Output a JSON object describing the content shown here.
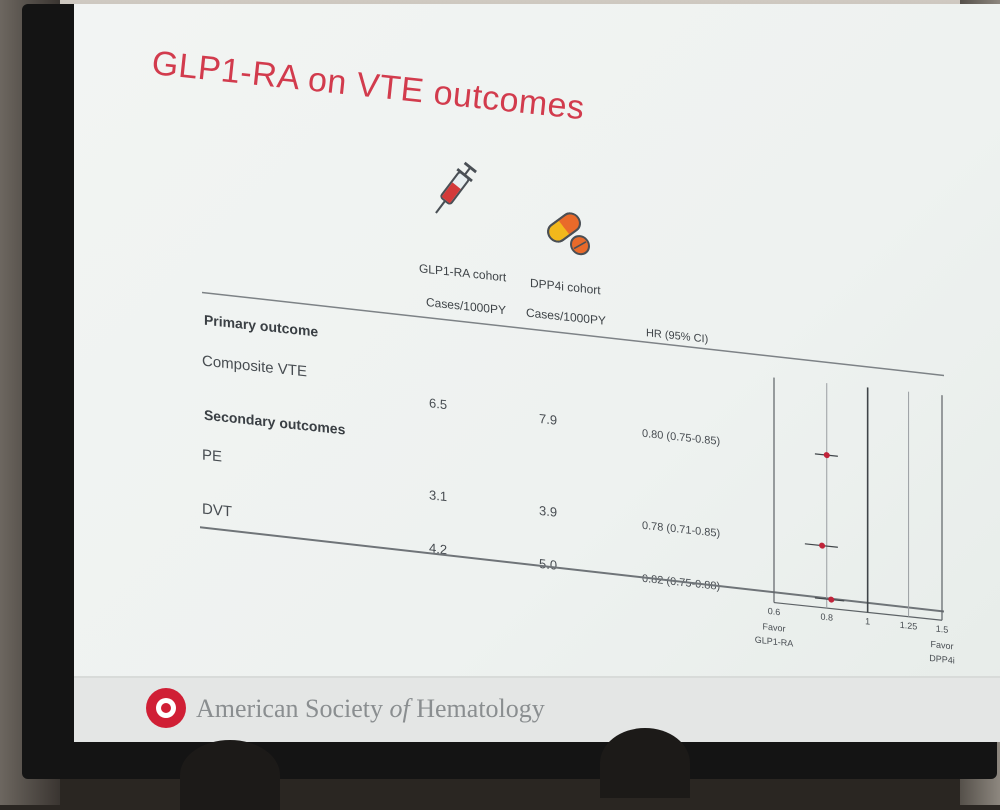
{
  "slide": {
    "title": "GLP1-RA on VTE outcomes",
    "footer_org_a": "American Society ",
    "footer_org_b": "of",
    "footer_org_c": " Hematology"
  },
  "icons": {
    "glp1": "syringe-icon",
    "dpp4": "pills-icon"
  },
  "colors": {
    "title": "#d23b4d",
    "marker": "#c0243a",
    "syringe": "#d33a3a",
    "pill_yellow": "#f2b81c",
    "pill_orange": "#e96a2a"
  },
  "chart_data": {
    "type": "table",
    "columns": {
      "glp1": "GLP1-RA cohort",
      "dpp4": "DPP4i cohort",
      "glp1_unit": "Cases/1000PY",
      "dpp4_unit": "Cases/1000PY",
      "hr": "HR (95% CI)"
    },
    "sections": [
      {
        "label": "Primary outcome",
        "rows": [
          {
            "outcome": "Composite VTE",
            "glp1": "6.5",
            "dpp4": "7.9",
            "hr_text": "0.80 (0.75-0.85)",
            "hr": 0.8,
            "ci": [
              0.75,
              0.85
            ]
          }
        ]
      },
      {
        "label": "Secondary outcomes",
        "rows": [
          {
            "outcome": "PE",
            "glp1": "3.1",
            "dpp4": "3.9",
            "hr_text": "0.78 (0.71-0.85)",
            "hr": 0.78,
            "ci": [
              0.71,
              0.85
            ]
          },
          {
            "outcome": "DVT",
            "glp1": "4.2",
            "dpp4": "5.0",
            "hr_text": "0.82 (0.75-0.88)",
            "hr": 0.82,
            "ci": [
              0.75,
              0.88
            ]
          }
        ]
      }
    ],
    "forest_axis": {
      "scale": "log",
      "ticks": [
        "0.6",
        "0.8",
        "1",
        "1.25",
        "1.5"
      ],
      "tick_values": [
        0.6,
        0.8,
        1,
        1.25,
        1.5
      ],
      "ref_line": 1,
      "favor_left": [
        "Favor",
        "GLP1-RA"
      ],
      "favor_right": [
        "Favor",
        "DPP4i"
      ]
    }
  }
}
